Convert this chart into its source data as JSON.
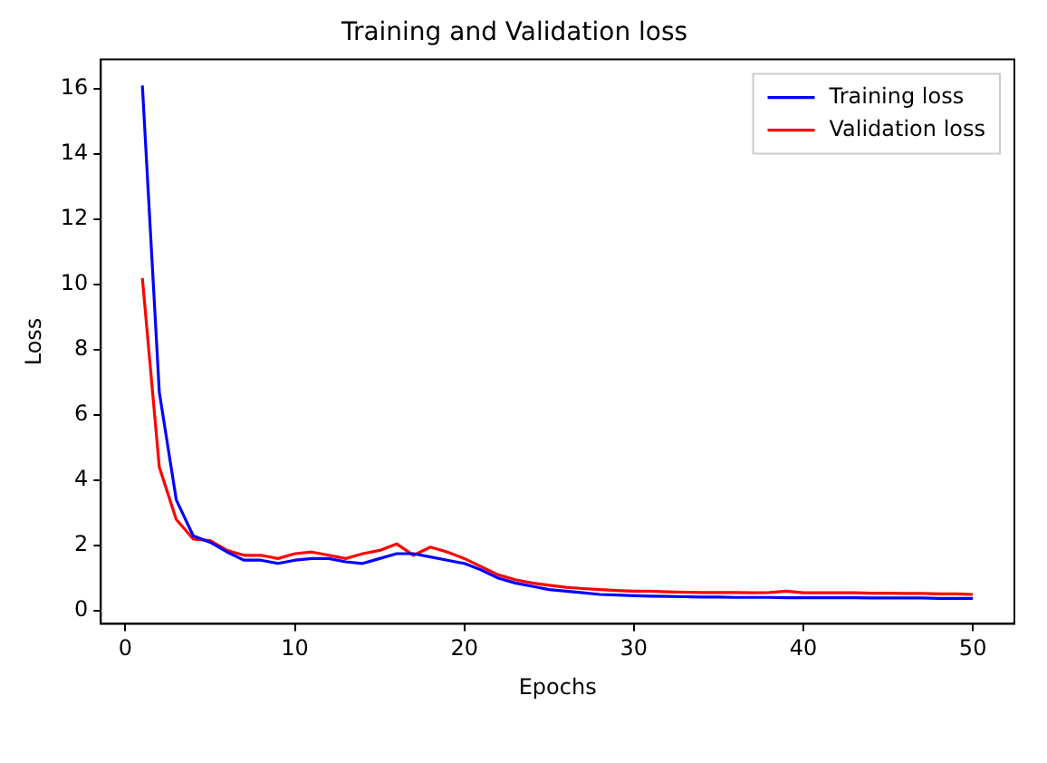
{
  "chart_data": {
    "type": "line",
    "title": "Training and Validation loss",
    "xlabel": "Epochs",
    "ylabel": "Loss",
    "x": [
      1,
      2,
      3,
      4,
      5,
      6,
      7,
      8,
      9,
      10,
      11,
      12,
      13,
      14,
      15,
      16,
      17,
      18,
      19,
      20,
      21,
      22,
      23,
      24,
      25,
      26,
      27,
      28,
      29,
      30,
      31,
      32,
      33,
      34,
      35,
      36,
      37,
      38,
      39,
      40,
      41,
      42,
      43,
      44,
      45,
      46,
      47,
      48,
      49,
      50
    ],
    "series": [
      {
        "name": "Training loss",
        "color": "#0000ff",
        "values": [
          16.1,
          6.7,
          3.4,
          2.3,
          2.1,
          1.8,
          1.55,
          1.55,
          1.45,
          1.55,
          1.6,
          1.6,
          1.5,
          1.45,
          1.6,
          1.75,
          1.75,
          1.65,
          1.55,
          1.45,
          1.25,
          1.0,
          0.85,
          0.75,
          0.65,
          0.6,
          0.55,
          0.5,
          0.48,
          0.46,
          0.45,
          0.44,
          0.43,
          0.42,
          0.42,
          0.41,
          0.41,
          0.41,
          0.4,
          0.4,
          0.4,
          0.4,
          0.4,
          0.39,
          0.39,
          0.39,
          0.39,
          0.38,
          0.38,
          0.38
        ]
      },
      {
        "name": "Validation loss",
        "color": "#ff0000",
        "values": [
          10.2,
          4.4,
          2.8,
          2.2,
          2.15,
          1.85,
          1.7,
          1.7,
          1.6,
          1.75,
          1.8,
          1.7,
          1.6,
          1.75,
          1.85,
          2.05,
          1.7,
          1.95,
          1.8,
          1.6,
          1.35,
          1.1,
          0.95,
          0.85,
          0.78,
          0.72,
          0.68,
          0.65,
          0.62,
          0.6,
          0.6,
          0.58,
          0.57,
          0.56,
          0.56,
          0.56,
          0.55,
          0.56,
          0.6,
          0.55,
          0.55,
          0.55,
          0.55,
          0.54,
          0.54,
          0.53,
          0.53,
          0.52,
          0.52,
          0.5
        ]
      }
    ],
    "xlim": [
      -1.45,
      52.45
    ],
    "xticks": [
      0,
      10,
      20,
      30,
      40,
      50
    ],
    "ylim": [
      -0.4,
      16.9
    ],
    "yticks": [
      0,
      2,
      4,
      6,
      8,
      10,
      12,
      14,
      16
    ],
    "grid": false,
    "legend": "top right",
    "marker": "none",
    "line_style": "solid"
  }
}
